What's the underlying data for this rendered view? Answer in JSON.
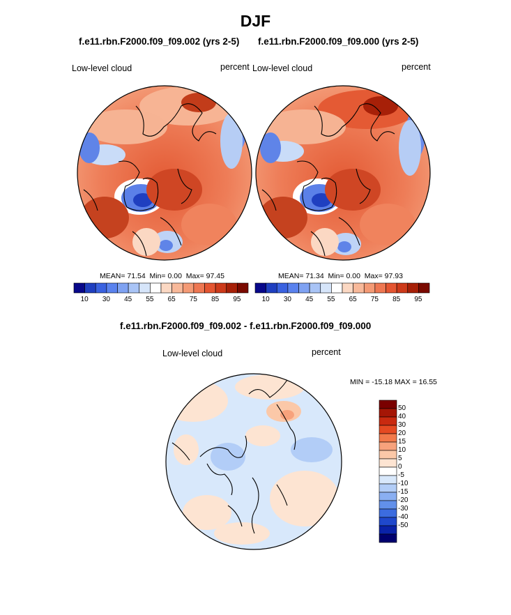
{
  "page_title": "DJF",
  "panels": [
    {
      "title": "f.e11.rbn.F2000.f09_f09.002 (yrs 2-5)",
      "left_label": "Low-level cloud",
      "right_label": "percent",
      "stats": {
        "mean_label": "MEAN=",
        "mean": "71.54",
        "min_label": "Min=",
        "min": "0.00",
        "max_label": "Max=",
        "max": "97.45"
      }
    },
    {
      "title": "f.e11.rbn.F2000.f09_f09.000 (yrs 2-5)",
      "left_label": "Low-level cloud",
      "right_label": "percent",
      "stats": {
        "mean_label": "MEAN=",
        "mean": "71.34",
        "min_label": "Min=",
        "min": "0.00",
        "max_label": "Max=",
        "max": "97.93"
      }
    }
  ],
  "field_colorbar": {
    "colors": [
      "#08088a",
      "#1f3fc0",
      "#3a62e0",
      "#5a82ee",
      "#7fa2f2",
      "#a9c4f6",
      "#d6e5fa",
      "#ffffff",
      "#fbd8c3",
      "#f8b99a",
      "#f49a75",
      "#ee7752",
      "#e45531",
      "#cd3a1a",
      "#a72008",
      "#7a0a00"
    ],
    "tick_labels": [
      "10",
      "30",
      "45",
      "55",
      "65",
      "75",
      "85",
      "95"
    ]
  },
  "diff_panel": {
    "title": "f.e11.rbn.F2000.f09_f09.002 - f.e11.rbn.F2000.f09_f09.000",
    "left_label": "Low-level cloud",
    "right_label": "percent",
    "minmax_text": "MIN = -15.18 MAX =  16.55"
  },
  "diff_colorbar": {
    "colors": [
      "#7a0000",
      "#a51606",
      "#c92a10",
      "#e54a22",
      "#f2794a",
      "#f7a27c",
      "#fbc8a8",
      "#fde4d2",
      "#ffffff",
      "#d8e8fb",
      "#b2cdf7",
      "#8aaff2",
      "#6290ea",
      "#3c6cdf",
      "#1f48cc",
      "#0a22a8",
      "#00006e"
    ],
    "tick_labels": [
      "50",
      "40",
      "30",
      "20",
      "15",
      "10",
      "5",
      "0",
      "-5",
      "-10",
      "-15",
      "-20",
      "-30",
      "-40",
      "-50"
    ]
  }
}
